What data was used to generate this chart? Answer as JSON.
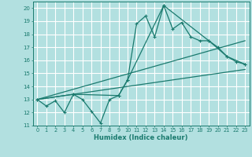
{
  "xlabel": "Humidex (Indice chaleur)",
  "bg_color": "#b2e0e0",
  "grid_color": "#ffffff",
  "line_color": "#1a7a6e",
  "xlim": [
    -0.5,
    23.5
  ],
  "ylim": [
    11,
    20.5
  ],
  "xticks": [
    0,
    1,
    2,
    3,
    4,
    5,
    6,
    7,
    8,
    9,
    10,
    11,
    12,
    13,
    14,
    15,
    16,
    17,
    18,
    19,
    20,
    21,
    22,
    23
  ],
  "yticks": [
    11,
    12,
    13,
    14,
    15,
    16,
    17,
    18,
    19,
    20
  ],
  "series1_x": [
    0,
    1,
    2,
    3,
    4,
    5,
    6,
    7,
    8,
    9,
    10,
    11,
    12,
    13,
    14,
    15,
    16,
    17,
    18,
    19,
    20,
    21,
    22,
    23
  ],
  "series1_y": [
    13.0,
    12.5,
    12.9,
    12.0,
    13.4,
    13.0,
    12.1,
    11.2,
    13.0,
    13.3,
    14.5,
    18.8,
    19.4,
    17.8,
    20.2,
    18.4,
    18.9,
    17.8,
    17.5,
    17.5,
    17.0,
    16.3,
    15.9,
    15.7
  ],
  "series2_x": [
    0,
    4,
    9,
    10,
    14,
    19,
    21,
    23
  ],
  "series2_y": [
    13.0,
    13.4,
    13.3,
    14.5,
    20.2,
    17.5,
    16.3,
    15.7
  ],
  "series3_x": [
    0,
    23
  ],
  "series3_y": [
    13.0,
    15.3
  ],
  "series4_x": [
    0,
    23
  ],
  "series4_y": [
    13.0,
    17.5
  ]
}
